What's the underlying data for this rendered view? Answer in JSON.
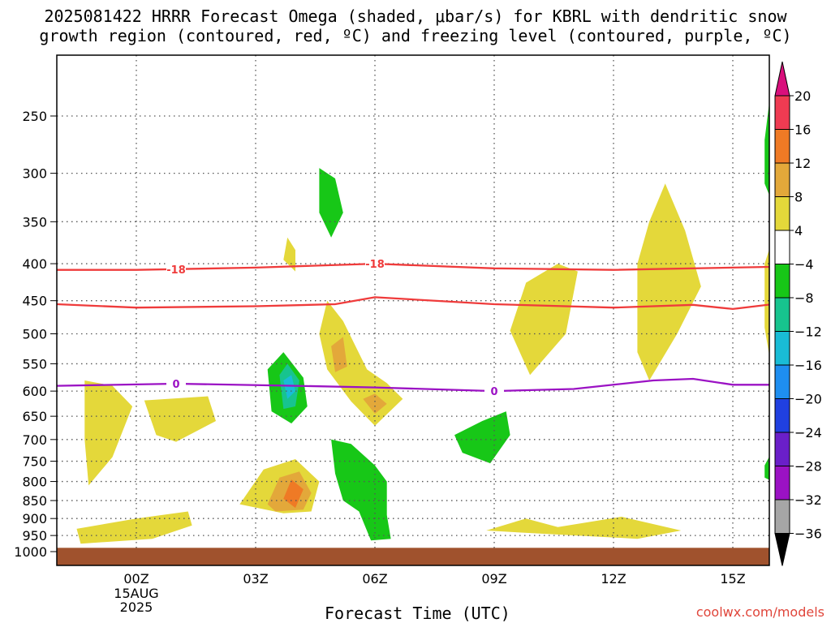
{
  "title": "2025081422 HRRR Forecast Omega (shaded, μbar/s) for KBRL with dendritic snow\ngrowth region (contoured, red, ºC) and freezing level (contoured, purple, ºC)",
  "credit": "coolwx.com/models",
  "chart_data": {
    "type": "time-height contour",
    "xlabel": "Forecast Time (UTC)",
    "ylabel": "",
    "x_ticks": [
      {
        "hour": 0,
        "label": "00Z",
        "sub": [
          "15AUG",
          "2025"
        ]
      },
      {
        "hour": 3,
        "label": "03Z",
        "sub": []
      },
      {
        "hour": 6,
        "label": "06Z",
        "sub": []
      },
      {
        "hour": 9,
        "label": "09Z",
        "sub": []
      },
      {
        "hour": 12,
        "label": "12Z",
        "sub": []
      },
      {
        "hour": 15,
        "label": "15Z",
        "sub": []
      }
    ],
    "xlim": [
      -2,
      16
    ],
    "y_ticks": [
      250,
      300,
      350,
      400,
      450,
      500,
      550,
      600,
      650,
      700,
      750,
      800,
      850,
      900,
      950,
      1000
    ],
    "ylim": [
      200,
      1000
    ],
    "y_scale": "log-pressure (hPa)",
    "grid": true,
    "colorbar": {
      "labels": [
        "20",
        "16",
        "12",
        "8",
        "4",
        "−4",
        "−8",
        "−12",
        "−16",
        "−20",
        "−24",
        "−28",
        "−32",
        "−36"
      ],
      "colors": [
        "#ef3b52",
        "#ef7a25",
        "#e3a83a",
        "#e4d83a",
        "#ffffff",
        "#17c717",
        "#17c48e",
        "#19bcd6",
        "#1e8ef0",
        "#2040e0",
        "#6a1fc9",
        "#9b12c4",
        "#a6a6a6"
      ],
      "top_arrow_color": "#d90f7c",
      "bottom_arrow_color": "#000000"
    },
    "contours": [
      {
        "name": "-18",
        "color": "#ef3b3b",
        "label_hours": [
          1,
          6
        ],
        "points": [
          [
            -2,
            408
          ],
          [
            0,
            408
          ],
          [
            3,
            405
          ],
          [
            6,
            400
          ],
          [
            9,
            406
          ],
          [
            12,
            408
          ],
          [
            16,
            404
          ]
        ]
      },
      {
        "name": "",
        "color": "#ef3b3b",
        "label_hours": [],
        "points": [
          [
            -2,
            455
          ],
          [
            0,
            460
          ],
          [
            3,
            458
          ],
          [
            5,
            455
          ],
          [
            6,
            445
          ],
          [
            9,
            455
          ],
          [
            12,
            460
          ],
          [
            14,
            456
          ],
          [
            15,
            462
          ],
          [
            16,
            455
          ]
        ]
      },
      {
        "name": "0",
        "color": "#9b12c4",
        "label_hours": [
          1,
          9
        ],
        "points": [
          [
            -2,
            590
          ],
          [
            1,
            586
          ],
          [
            4,
            590
          ],
          [
            6,
            593
          ],
          [
            9,
            600
          ],
          [
            11,
            596
          ],
          [
            13,
            580
          ],
          [
            14,
            577
          ],
          [
            15,
            588
          ],
          [
            16,
            588
          ]
        ]
      }
    ],
    "omega_regions": [
      {
        "level": "4",
        "color": "#e4d83a",
        "points": [
          [
            -1.3,
            580
          ],
          [
            -0.6,
            590
          ],
          [
            -0.1,
            630
          ],
          [
            -0.6,
            740
          ],
          [
            -1.2,
            810
          ],
          [
            -1.3,
            700
          ]
        ]
      },
      {
        "level": "4",
        "color": "#e4d83a",
        "points": [
          [
            0.2,
            618
          ],
          [
            1.8,
            610
          ],
          [
            2.0,
            660
          ],
          [
            1.0,
            705
          ],
          [
            0.5,
            690
          ]
        ]
      },
      {
        "level": "4",
        "color": "#e4d83a",
        "points": [
          [
            -1.5,
            930
          ],
          [
            0.0,
            900
          ],
          [
            1.3,
            880
          ],
          [
            1.4,
            920
          ],
          [
            0.4,
            960
          ],
          [
            -1.4,
            975
          ]
        ]
      },
      {
        "level": "4",
        "color": "#e4d83a",
        "points": [
          [
            2.6,
            860
          ],
          [
            3.2,
            770
          ],
          [
            4.0,
            745
          ],
          [
            4.6,
            800
          ],
          [
            4.4,
            880
          ],
          [
            3.7,
            885
          ]
        ]
      },
      {
        "level": "8",
        "color": "#e3a83a",
        "points": [
          [
            3.3,
            860
          ],
          [
            3.6,
            790
          ],
          [
            4.1,
            775
          ],
          [
            4.4,
            830
          ],
          [
            4.2,
            875
          ],
          [
            3.5,
            880
          ]
        ]
      },
      {
        "level": "12",
        "color": "#ef7a25",
        "points": [
          [
            3.7,
            845
          ],
          [
            3.9,
            795
          ],
          [
            4.2,
            820
          ],
          [
            4.0,
            870
          ]
        ]
      },
      {
        "level": "4",
        "color": "#e4d83a",
        "points": [
          [
            3.8,
            368
          ],
          [
            4.0,
            383
          ],
          [
            4.0,
            410
          ],
          [
            3.7,
            395
          ]
        ]
      },
      {
        "level": "4",
        "color": "#e4d83a",
        "points": [
          [
            4.6,
            500
          ],
          [
            4.8,
            450
          ],
          [
            5.2,
            480
          ],
          [
            5.8,
            560
          ],
          [
            6.3,
            585
          ],
          [
            6.7,
            615
          ],
          [
            6.0,
            670
          ],
          [
            5.4,
            620
          ],
          [
            4.8,
            560
          ]
        ]
      },
      {
        "level": "8",
        "color": "#e3a83a",
        "points": [
          [
            4.9,
            520
          ],
          [
            5.2,
            505
          ],
          [
            5.3,
            555
          ],
          [
            5.0,
            565
          ]
        ]
      },
      {
        "level": "8",
        "color": "#e3a83a",
        "points": [
          [
            5.7,
            615
          ],
          [
            6.0,
            605
          ],
          [
            6.3,
            625
          ],
          [
            6.0,
            645
          ]
        ]
      },
      {
        "level": "4",
        "color": "#e4d83a",
        "points": [
          [
            9.4,
            495
          ],
          [
            9.8,
            425
          ],
          [
            10.6,
            400
          ],
          [
            11.1,
            410
          ],
          [
            10.8,
            500
          ],
          [
            9.9,
            570
          ]
        ]
      },
      {
        "level": "4",
        "color": "#e4d83a",
        "points": [
          [
            12.6,
            400
          ],
          [
            12.9,
            350
          ],
          [
            13.3,
            310
          ],
          [
            13.8,
            360
          ],
          [
            14.2,
            430
          ],
          [
            13.6,
            500
          ],
          [
            12.9,
            580
          ],
          [
            12.6,
            530
          ]
        ]
      },
      {
        "level": "4",
        "color": "#e4d83a",
        "points": [
          [
            15.8,
            400
          ],
          [
            16.0,
            370
          ],
          [
            16.0,
            570
          ],
          [
            15.8,
            490
          ]
        ]
      },
      {
        "level": "4",
        "color": "#e4d83a",
        "points": [
          [
            8.8,
            935
          ],
          [
            9.8,
            900
          ],
          [
            10.6,
            925
          ],
          [
            12.2,
            895
          ],
          [
            13.7,
            935
          ],
          [
            12.6,
            960
          ],
          [
            9.5,
            940
          ]
        ]
      },
      {
        "level": "-4",
        "color": "#17c717",
        "points": [
          [
            4.6,
            295
          ],
          [
            5.0,
            305
          ],
          [
            5.2,
            340
          ],
          [
            4.9,
            368
          ],
          [
            4.6,
            340
          ]
        ]
      },
      {
        "level": "-4",
        "color": "#17c717",
        "points": [
          [
            3.3,
            560
          ],
          [
            3.7,
            530
          ],
          [
            4.2,
            575
          ],
          [
            4.3,
            630
          ],
          [
            3.9,
            665
          ],
          [
            3.4,
            640
          ]
        ]
      },
      {
        "level": "-8",
        "color": "#17c48e",
        "points": [
          [
            3.6,
            570
          ],
          [
            3.8,
            550
          ],
          [
            4.1,
            580
          ],
          [
            4.0,
            630
          ],
          [
            3.7,
            635
          ]
        ]
      },
      {
        "level": "-12",
        "color": "#19bcd6",
        "points": [
          [
            3.7,
            580
          ],
          [
            3.9,
            570
          ],
          [
            4.0,
            600
          ],
          [
            3.8,
            615
          ]
        ]
      },
      {
        "level": "-4",
        "color": "#17c717",
        "points": [
          [
            4.9,
            700
          ],
          [
            5.4,
            710
          ],
          [
            6.0,
            760
          ],
          [
            6.3,
            800
          ],
          [
            6.3,
            890
          ],
          [
            6.4,
            960
          ],
          [
            5.9,
            965
          ],
          [
            5.6,
            880
          ],
          [
            5.2,
            850
          ],
          [
            5.0,
            780
          ]
        ]
      },
      {
        "level": "-4",
        "color": "#17c717",
        "points": [
          [
            8.0,
            690
          ],
          [
            8.7,
            660
          ],
          [
            9.3,
            640
          ],
          [
            9.4,
            690
          ],
          [
            8.9,
            755
          ],
          [
            8.2,
            730
          ]
        ]
      },
      {
        "level": "-4",
        "color": "#17c717",
        "points": [
          [
            15.8,
            270
          ],
          [
            16.0,
            220
          ],
          [
            16.0,
            330
          ],
          [
            15.8,
            310
          ]
        ]
      },
      {
        "level": "-4",
        "color": "#17c717",
        "points": [
          [
            15.8,
            760
          ],
          [
            16.0,
            725
          ],
          [
            16.0,
            800
          ],
          [
            15.8,
            790
          ]
        ]
      }
    ],
    "terrain": {
      "color": "#a0522d",
      "top_hpa": 988
    }
  }
}
